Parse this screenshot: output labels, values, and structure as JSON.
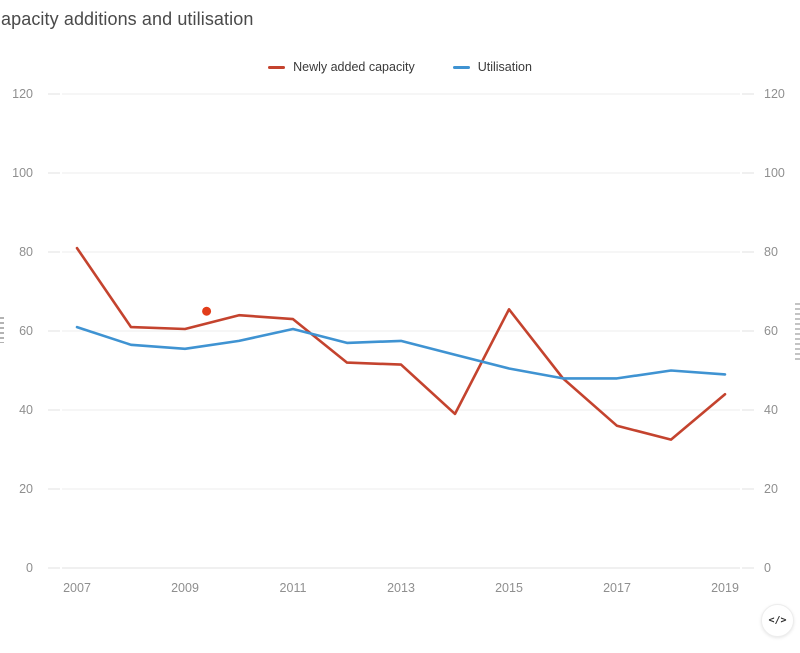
{
  "header": {
    "title": "apacity additions and utilisation"
  },
  "legend": {
    "items": [
      {
        "label": "Newly added capacity",
        "color": "#c4432e"
      },
      {
        "label": "Utilisation",
        "color": "#3f93d2"
      }
    ]
  },
  "chart_data": {
    "type": "line",
    "title": "apacity additions and utilisation",
    "x": [
      2007,
      2008,
      2009,
      2010,
      2011,
      2012,
      2013,
      2014,
      2015,
      2016,
      2017,
      2018,
      2019
    ],
    "x_tick_labels": [
      "2007",
      "2009",
      "2011",
      "2013",
      "2015",
      "2017",
      "2019"
    ],
    "series": [
      {
        "name": "Newly added capacity",
        "color": "#c4432e",
        "values": [
          81,
          61,
          60.5,
          64,
          63,
          52,
          51.5,
          39,
          65.5,
          48,
          36,
          32.5,
          44
        ]
      },
      {
        "name": "Utilisation",
        "color": "#3f93d2",
        "values": [
          61,
          56.5,
          55.5,
          57.5,
          60.5,
          57,
          57.5,
          54,
          50.5,
          48,
          48,
          50,
          49
        ]
      }
    ],
    "highlight_point": {
      "series": "Newly added capacity",
      "x": 2009.4,
      "y": 65,
      "color": "#e23d1a"
    },
    "y_axis": {
      "min": 0,
      "max": 120,
      "ticks": [
        0,
        20,
        40,
        60,
        80,
        100,
        120
      ],
      "label_sides": [
        "left",
        "right"
      ]
    },
    "grid": "horizontal",
    "legend_position": "top-center",
    "colors": {
      "gridline": "#ededed",
      "baseline": "#e2e2e2",
      "tick": "#e0e0e0",
      "axis_text": "#8f8f8f"
    }
  },
  "embed_button": {
    "icon": "</>"
  }
}
